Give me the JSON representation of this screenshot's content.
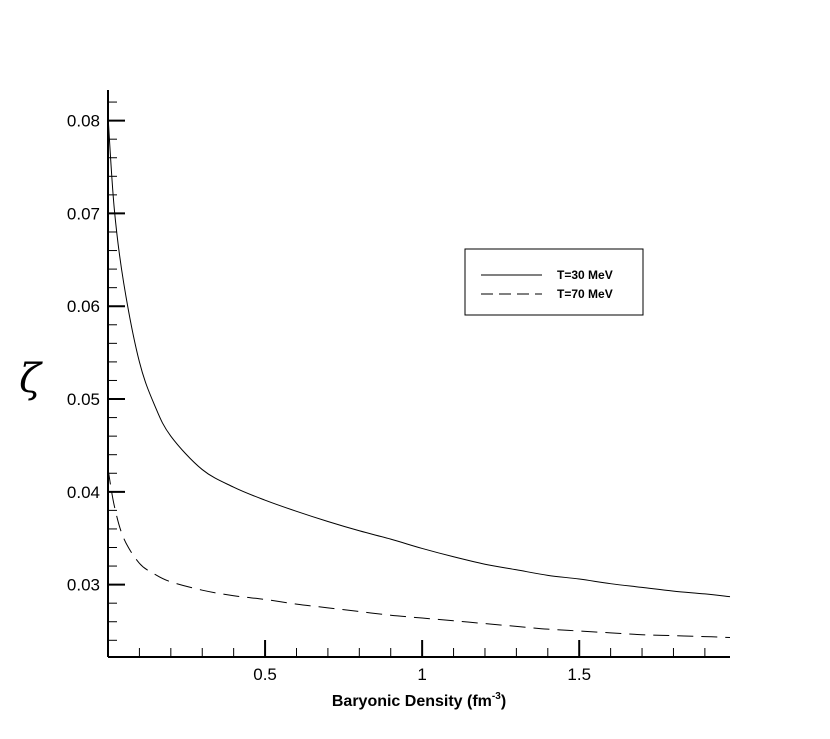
{
  "chart_data": {
    "type": "line",
    "title": "",
    "xlabel": "Baryonic Density (fm",
    "xlabel_sup": "-3",
    "xlabel_close": ")",
    "ylabel": "ζ",
    "xlim": [
      0.0,
      1.98
    ],
    "ylim": [
      0.0222,
      0.0833
    ],
    "x_ticks": [
      0.5,
      1.0,
      1.5
    ],
    "x_tick_labels": [
      "0.5",
      "1",
      "1.5"
    ],
    "y_ticks": [
      0.03,
      0.04,
      0.05,
      0.06,
      0.07,
      0.08
    ],
    "y_tick_labels": [
      "0.03",
      "0.04",
      "0.05",
      "0.06",
      "0.07",
      "0.08"
    ],
    "grid": false,
    "legend_position": "upper-right",
    "series": [
      {
        "name": "T=30 MeV",
        "style": "solid",
        "x": [
          0.0,
          0.02,
          0.05,
          0.1,
          0.15,
          0.2,
          0.3,
          0.4,
          0.5,
          0.6,
          0.7,
          0.8,
          0.9,
          1.0,
          1.1,
          1.2,
          1.3,
          1.4,
          1.5,
          1.6,
          1.7,
          1.8,
          1.9,
          1.98
        ],
        "y": [
          0.0805,
          0.0705,
          0.0625,
          0.054,
          0.0492,
          0.046,
          0.0424,
          0.0405,
          0.0391,
          0.0379,
          0.0368,
          0.0358,
          0.0349,
          0.0339,
          0.033,
          0.0322,
          0.0316,
          0.031,
          0.0306,
          0.0301,
          0.0297,
          0.0293,
          0.029,
          0.0287
        ]
      },
      {
        "name": "T=70 MeV",
        "style": "dashed",
        "x": [
          0.0,
          0.02,
          0.05,
          0.1,
          0.15,
          0.2,
          0.3,
          0.4,
          0.5,
          0.6,
          0.7,
          0.8,
          0.9,
          1.0,
          1.1,
          1.2,
          1.3,
          1.4,
          1.5,
          1.6,
          1.7,
          1.8,
          1.9,
          1.98
        ],
        "y": [
          0.0425,
          0.0385,
          0.035,
          0.0323,
          0.0311,
          0.0303,
          0.0294,
          0.0288,
          0.0284,
          0.0279,
          0.0275,
          0.0271,
          0.0267,
          0.0264,
          0.0261,
          0.0258,
          0.0255,
          0.0252,
          0.025,
          0.0248,
          0.0246,
          0.0245,
          0.0244,
          0.0243
        ]
      }
    ],
    "colors": {
      "axis": "#000000",
      "line": "#000000",
      "background": "#ffffff"
    }
  }
}
